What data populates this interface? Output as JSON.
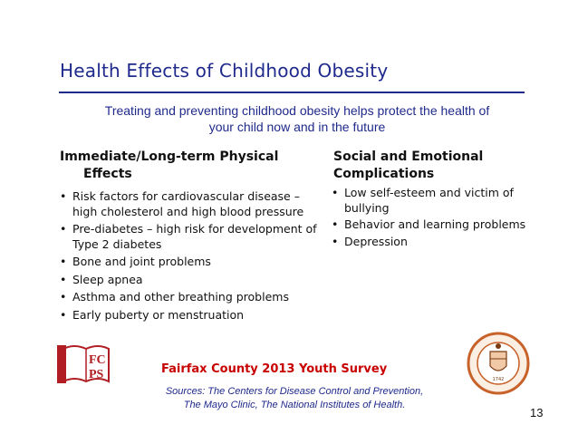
{
  "slide": {
    "title": "Health Effects of Childhood Obesity",
    "subtitle_line1": "Treating and preventing childhood obesity helps protect the health of",
    "subtitle_line2": "your child now and in the future",
    "page_number": "13"
  },
  "left_column": {
    "heading_line1": "Immediate/Long-term Physical",
    "heading_line2": "Effects",
    "items": [
      "Risk factors for cardiovascular disease – high cholesterol and high blood pressure",
      "Pre-diabetes – high risk for development of Type 2 diabetes",
      "Bone and joint problems",
      "Sleep apnea",
      "Asthma and other breathing problems",
      "Early puberty or menstruation"
    ]
  },
  "right_column": {
    "heading_line1": "Social and Emotional",
    "heading_line2": "Complications",
    "items": [
      "Low self-esteem and victim of bullying",
      "Behavior and learning problems",
      "Depression"
    ]
  },
  "footer": {
    "survey": "Fairfax County 2013 Youth Survey",
    "sources_line1": "Sources: The Centers for Disease Control and Prevention,",
    "sources_line2": "The Mayo Clinic, The National Institutes of Health."
  },
  "logos": {
    "fcps_text_top": "FC",
    "fcps_text_bottom": "PS",
    "seal_year": "1742"
  },
  "colors": {
    "title_blue": "#1f2a8c",
    "survey_red": "#c80000",
    "logo_red": "#b01e23",
    "seal_orange": "#c8622a"
  }
}
